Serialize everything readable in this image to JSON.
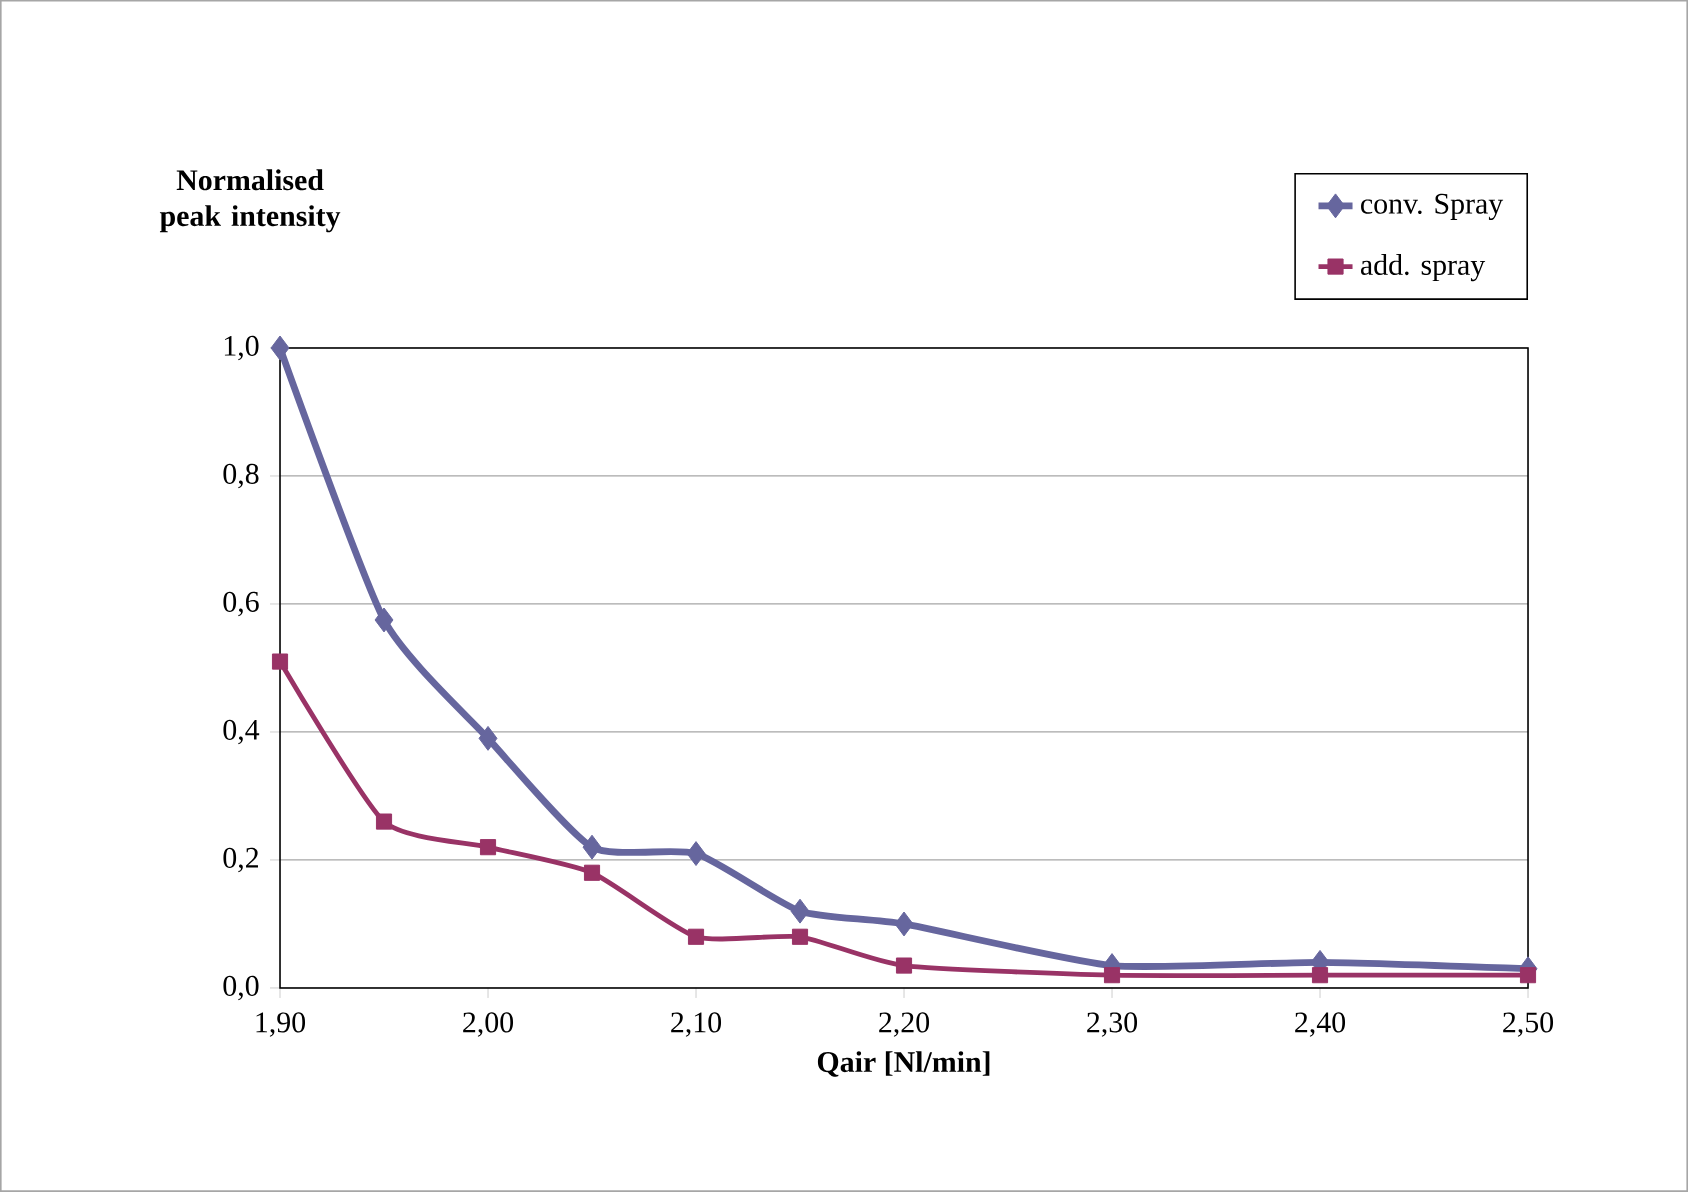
{
  "chart_data": {
    "type": "line",
    "xlabel": "Qair [Nl/min]",
    "ylabel": "Normalised peak intensity",
    "xlim": [
      1.9,
      2.5
    ],
    "ylim": [
      0,
      1.0
    ],
    "xticks": [
      {
        "value": 1.9,
        "label": "1,90"
      },
      {
        "value": 2.0,
        "label": "2,00"
      },
      {
        "value": 2.1,
        "label": "2,10"
      },
      {
        "value": 2.2,
        "label": "2,20"
      },
      {
        "value": 2.3,
        "label": "2,30"
      },
      {
        "value": 2.4,
        "label": "2,40"
      },
      {
        "value": 2.5,
        "label": "2,50"
      }
    ],
    "yticks": [
      {
        "value": 0,
        "label": "0,0"
      },
      {
        "value": 0.2,
        "label": "0,2"
      },
      {
        "value": 0.4,
        "label": "0,4"
      },
      {
        "value": 0.6,
        "label": "0,6"
      },
      {
        "value": 0.8,
        "label": "0,8"
      },
      {
        "value": 1.0,
        "label": "1,0"
      }
    ],
    "grid": "y",
    "legend": "top right",
    "x": [
      1.9,
      1.95,
      2.0,
      2.05,
      2.1,
      2.15,
      2.2,
      2.3,
      2.4,
      2.5
    ],
    "series": [
      {
        "name": "conv. Spray",
        "color": "#66669e",
        "marker": "diamond",
        "values": [
          1.0,
          0.575,
          0.39,
          0.22,
          0.21,
          0.12,
          0.1,
          0.035,
          0.04,
          0.03
        ]
      },
      {
        "name": "add. spray",
        "color": "#993366",
        "marker": "square",
        "values": [
          0.51,
          0.26,
          0.22,
          0.18,
          0.08,
          0.08,
          0.035,
          0.02,
          0.02,
          0.02
        ]
      }
    ]
  }
}
